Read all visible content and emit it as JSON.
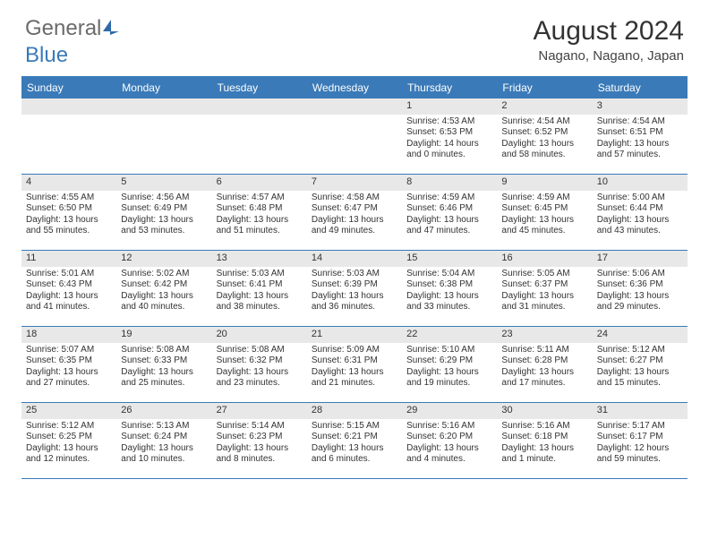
{
  "logo": {
    "part1": "General",
    "part2": "Blue"
  },
  "header": {
    "title": "August 2024",
    "location": "Nagano, Nagano, Japan"
  },
  "colors": {
    "brand": "#3a7ab8",
    "day_bar": "#e8e8e8",
    "text": "#333333"
  },
  "weekdays": [
    "Sunday",
    "Monday",
    "Tuesday",
    "Wednesday",
    "Thursday",
    "Friday",
    "Saturday"
  ],
  "weeks": [
    [
      null,
      null,
      null,
      null,
      {
        "n": "1",
        "sr": "4:53 AM",
        "ss": "6:53 PM",
        "dl": "14 hours and 0 minutes."
      },
      {
        "n": "2",
        "sr": "4:54 AM",
        "ss": "6:52 PM",
        "dl": "13 hours and 58 minutes."
      },
      {
        "n": "3",
        "sr": "4:54 AM",
        "ss": "6:51 PM",
        "dl": "13 hours and 57 minutes."
      }
    ],
    [
      {
        "n": "4",
        "sr": "4:55 AM",
        "ss": "6:50 PM",
        "dl": "13 hours and 55 minutes."
      },
      {
        "n": "5",
        "sr": "4:56 AM",
        "ss": "6:49 PM",
        "dl": "13 hours and 53 minutes."
      },
      {
        "n": "6",
        "sr": "4:57 AM",
        "ss": "6:48 PM",
        "dl": "13 hours and 51 minutes."
      },
      {
        "n": "7",
        "sr": "4:58 AM",
        "ss": "6:47 PM",
        "dl": "13 hours and 49 minutes."
      },
      {
        "n": "8",
        "sr": "4:59 AM",
        "ss": "6:46 PM",
        "dl": "13 hours and 47 minutes."
      },
      {
        "n": "9",
        "sr": "4:59 AM",
        "ss": "6:45 PM",
        "dl": "13 hours and 45 minutes."
      },
      {
        "n": "10",
        "sr": "5:00 AM",
        "ss": "6:44 PM",
        "dl": "13 hours and 43 minutes."
      }
    ],
    [
      {
        "n": "11",
        "sr": "5:01 AM",
        "ss": "6:43 PM",
        "dl": "13 hours and 41 minutes."
      },
      {
        "n": "12",
        "sr": "5:02 AM",
        "ss": "6:42 PM",
        "dl": "13 hours and 40 minutes."
      },
      {
        "n": "13",
        "sr": "5:03 AM",
        "ss": "6:41 PM",
        "dl": "13 hours and 38 minutes."
      },
      {
        "n": "14",
        "sr": "5:03 AM",
        "ss": "6:39 PM",
        "dl": "13 hours and 36 minutes."
      },
      {
        "n": "15",
        "sr": "5:04 AM",
        "ss": "6:38 PM",
        "dl": "13 hours and 33 minutes."
      },
      {
        "n": "16",
        "sr": "5:05 AM",
        "ss": "6:37 PM",
        "dl": "13 hours and 31 minutes."
      },
      {
        "n": "17",
        "sr": "5:06 AM",
        "ss": "6:36 PM",
        "dl": "13 hours and 29 minutes."
      }
    ],
    [
      {
        "n": "18",
        "sr": "5:07 AM",
        "ss": "6:35 PM",
        "dl": "13 hours and 27 minutes."
      },
      {
        "n": "19",
        "sr": "5:08 AM",
        "ss": "6:33 PM",
        "dl": "13 hours and 25 minutes."
      },
      {
        "n": "20",
        "sr": "5:08 AM",
        "ss": "6:32 PM",
        "dl": "13 hours and 23 minutes."
      },
      {
        "n": "21",
        "sr": "5:09 AM",
        "ss": "6:31 PM",
        "dl": "13 hours and 21 minutes."
      },
      {
        "n": "22",
        "sr": "5:10 AM",
        "ss": "6:29 PM",
        "dl": "13 hours and 19 minutes."
      },
      {
        "n": "23",
        "sr": "5:11 AM",
        "ss": "6:28 PM",
        "dl": "13 hours and 17 minutes."
      },
      {
        "n": "24",
        "sr": "5:12 AM",
        "ss": "6:27 PM",
        "dl": "13 hours and 15 minutes."
      }
    ],
    [
      {
        "n": "25",
        "sr": "5:12 AM",
        "ss": "6:25 PM",
        "dl": "13 hours and 12 minutes."
      },
      {
        "n": "26",
        "sr": "5:13 AM",
        "ss": "6:24 PM",
        "dl": "13 hours and 10 minutes."
      },
      {
        "n": "27",
        "sr": "5:14 AM",
        "ss": "6:23 PM",
        "dl": "13 hours and 8 minutes."
      },
      {
        "n": "28",
        "sr": "5:15 AM",
        "ss": "6:21 PM",
        "dl": "13 hours and 6 minutes."
      },
      {
        "n": "29",
        "sr": "5:16 AM",
        "ss": "6:20 PM",
        "dl": "13 hours and 4 minutes."
      },
      {
        "n": "30",
        "sr": "5:16 AM",
        "ss": "6:18 PM",
        "dl": "13 hours and 1 minute."
      },
      {
        "n": "31",
        "sr": "5:17 AM",
        "ss": "6:17 PM",
        "dl": "12 hours and 59 minutes."
      }
    ]
  ],
  "labels": {
    "sunrise": "Sunrise:",
    "sunset": "Sunset:",
    "daylight": "Daylight:"
  }
}
